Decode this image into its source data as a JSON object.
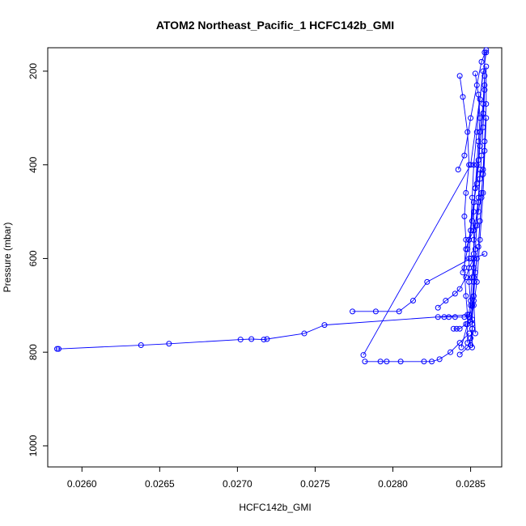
{
  "chart_data": {
    "type": "line",
    "title": "ATOM2 Northeast_Pacific_1 HCFC142b_GMI",
    "xlabel": "HCFC142b_GMI",
    "ylabel": "Pressure (mbar)",
    "xlim": [
      0.02578,
      0.0287
    ],
    "ylim": [
      1045,
      150
    ],
    "y_reversed": true,
    "xticks": [
      0.026,
      0.0265,
      0.027,
      0.0275,
      0.028,
      0.0285
    ],
    "xtick_labels": [
      "0.0260",
      "0.0265",
      "0.0270",
      "0.0275",
      "0.0280",
      "0.0285"
    ],
    "yticks": [
      200,
      400,
      600,
      800,
      1000
    ],
    "ytick_labels": [
      "200",
      "400",
      "600",
      "800",
      "1000"
    ],
    "grid": false,
    "legend": "none",
    "series_color": "#0000ff",
    "series": [
      {
        "points": [
          [
            0.02858,
            200
          ],
          [
            0.02856,
            260
          ],
          [
            0.02854,
            330
          ],
          [
            0.02852,
            400
          ],
          [
            0.02851,
            470
          ],
          [
            0.0285,
            540
          ],
          [
            0.02849,
            600
          ],
          [
            0.02849,
            650
          ],
          [
            0.0285,
            700
          ],
          [
            0.02851,
            740
          ],
          [
            0.02851,
            790
          ]
        ]
      },
      {
        "points": [
          [
            0.02584,
            793
          ],
          [
            0.02585,
            793
          ],
          [
            0.02638,
            785
          ],
          [
            0.02656,
            782
          ],
          [
            0.02702,
            773
          ],
          [
            0.02709,
            772
          ],
          [
            0.02717,
            773
          ],
          [
            0.02719,
            772
          ],
          [
            0.02743,
            760
          ],
          [
            0.02756,
            742
          ],
          [
            0.02849,
            720
          ]
        ]
      },
      {
        "points": [
          [
            0.02774,
            713
          ],
          [
            0.02789,
            713
          ],
          [
            0.02804,
            713
          ],
          [
            0.02813,
            690
          ],
          [
            0.02822,
            650
          ],
          [
            0.0285,
            600
          ]
        ]
      },
      {
        "points": [
          [
            0.02781,
            806
          ],
          [
            0.0285,
            400
          ],
          [
            0.0286,
            160
          ]
        ]
      },
      {
        "points": [
          [
            0.02782,
            820
          ],
          [
            0.02792,
            820
          ],
          [
            0.02796,
            820
          ],
          [
            0.02805,
            820
          ],
          [
            0.0282,
            820
          ],
          [
            0.02825,
            820
          ],
          [
            0.0283,
            815
          ],
          [
            0.02837,
            800
          ],
          [
            0.02843,
            780
          ],
          [
            0.02849,
            760
          ]
        ]
      },
      {
        "points": [
          [
            0.02829,
            725
          ],
          [
            0.02833,
            725
          ],
          [
            0.02836,
            725
          ],
          [
            0.0284,
            725
          ],
          [
            0.02846,
            725
          ],
          [
            0.02849,
            725
          ],
          [
            0.02851,
            700
          ],
          [
            0.02852,
            650
          ],
          [
            0.02854,
            600
          ]
        ]
      },
      {
        "points": [
          [
            0.02829,
            705
          ],
          [
            0.02834,
            690
          ],
          [
            0.0284,
            675
          ],
          [
            0.02843,
            665
          ],
          [
            0.02847,
            640
          ],
          [
            0.02849,
            620
          ],
          [
            0.02852,
            600
          ],
          [
            0.02859,
            590
          ]
        ]
      },
      {
        "points": [
          [
            0.02839,
            750
          ],
          [
            0.02841,
            750
          ],
          [
            0.02843,
            750
          ],
          [
            0.02847,
            740
          ],
          [
            0.0285,
            735
          ],
          [
            0.02852,
            700
          ],
          [
            0.02854,
            650
          ],
          [
            0.02856,
            560
          ],
          [
            0.02858,
            460
          ],
          [
            0.0286,
            300
          ]
        ]
      },
      {
        "points": [
          [
            0.02843,
            210
          ],
          [
            0.02845,
            255
          ],
          [
            0.02848,
            330
          ],
          [
            0.02849,
            400
          ],
          [
            0.02847,
            460
          ],
          [
            0.02846,
            510
          ],
          [
            0.02847,
            560
          ],
          [
            0.02846,
            620
          ],
          [
            0.02847,
            680
          ],
          [
            0.02848,
            720
          ],
          [
            0.02848,
            780
          ]
        ]
      },
      {
        "points": [
          [
            0.02842,
            410
          ],
          [
            0.02846,
            380
          ],
          [
            0.0285,
            300
          ],
          [
            0.02854,
            230
          ],
          [
            0.02857,
            180
          ],
          [
            0.0286,
            155
          ]
        ]
      },
      {
        "points": [
          [
            0.02853,
            205
          ],
          [
            0.02855,
            250
          ],
          [
            0.02856,
            300
          ],
          [
            0.02855,
            350
          ],
          [
            0.02854,
            400
          ],
          [
            0.02853,
            450
          ],
          [
            0.02852,
            500
          ],
          [
            0.02852,
            560
          ],
          [
            0.02852,
            620
          ],
          [
            0.02852,
            690
          ],
          [
            0.02853,
            760
          ]
        ]
      },
      {
        "points": [
          [
            0.02859,
            160
          ],
          [
            0.02859,
            240
          ],
          [
            0.02858,
            320
          ],
          [
            0.02857,
            380
          ],
          [
            0.02856,
            430
          ],
          [
            0.02855,
            480
          ],
          [
            0.02854,
            530
          ],
          [
            0.02853,
            580
          ],
          [
            0.02852,
            640
          ],
          [
            0.02851,
            700
          ],
          [
            0.02851,
            750
          ],
          [
            0.0285,
            785
          ]
        ]
      },
      {
        "points": [
          [
            0.0286,
            190
          ],
          [
            0.0286,
            270
          ],
          [
            0.02859,
            350
          ],
          [
            0.02858,
            410
          ],
          [
            0.02857,
            470
          ],
          [
            0.02856,
            520
          ],
          [
            0.02855,
            575
          ],
          [
            0.02853,
            630
          ],
          [
            0.02852,
            680
          ],
          [
            0.02851,
            730
          ]
        ]
      },
      {
        "points": [
          [
            0.02845,
            630
          ],
          [
            0.02848,
            580
          ],
          [
            0.02851,
            520
          ],
          [
            0.02853,
            450
          ],
          [
            0.02855,
            390
          ],
          [
            0.02856,
            330
          ],
          [
            0.02858,
            270
          ],
          [
            0.02859,
            210
          ]
        ]
      },
      {
        "points": [
          [
            0.02844,
            790
          ],
          [
            0.02848,
            740
          ],
          [
            0.0285,
            690
          ],
          [
            0.02851,
            640
          ],
          [
            0.02852,
            590
          ],
          [
            0.02853,
            530
          ],
          [
            0.02855,
            470
          ],
          [
            0.02856,
            410
          ]
        ]
      },
      {
        "points": [
          [
            0.02847,
            580
          ],
          [
            0.02849,
            560
          ],
          [
            0.02852,
            540
          ],
          [
            0.02855,
            500
          ],
          [
            0.02857,
            460
          ],
          [
            0.02858,
            420
          ],
          [
            0.02859,
            370
          ]
        ]
      },
      {
        "points": [
          [
            0.02849,
            560
          ],
          [
            0.02852,
            480
          ],
          [
            0.02854,
            440
          ],
          [
            0.02856,
            360
          ],
          [
            0.02858,
            290
          ],
          [
            0.02859,
            230
          ]
        ]
      },
      {
        "points": [
          [
            0.02843,
            805
          ],
          [
            0.02848,
            790
          ],
          [
            0.0285,
            770
          ],
          [
            0.02851,
            750
          ]
        ]
      }
    ]
  }
}
